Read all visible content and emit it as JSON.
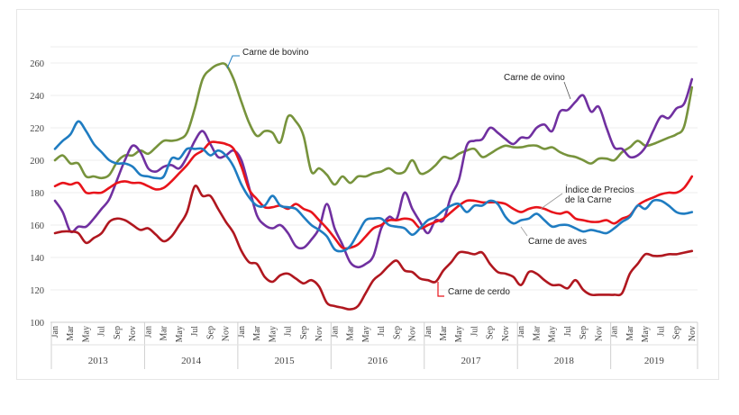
{
  "chart_data": {
    "type": "line",
    "title": "",
    "xlabel": "",
    "ylabel": "",
    "ylim": [
      100,
      260
    ],
    "yticks": [
      100,
      120,
      140,
      160,
      180,
      200,
      220,
      240,
      260
    ],
    "grid": true,
    "years": [
      "2013",
      "2014",
      "2015",
      "2016",
      "2017",
      "2018",
      "2019"
    ],
    "month_labels": [
      "Jan",
      "Mar",
      "May",
      "Jul",
      "Sep",
      "Nov"
    ],
    "x_start": "2013-01",
    "x_end": "2019-11",
    "series": [
      {
        "name": "Carne de bovino",
        "color": "#77933C",
        "values": [
          200,
          203,
          198,
          198,
          190,
          190,
          189,
          191,
          199,
          203,
          203,
          206,
          204,
          208,
          212,
          212,
          213,
          217,
          232,
          250,
          256,
          259,
          259,
          250,
          236,
          223,
          215,
          218,
          217,
          211,
          227,
          224,
          215,
          193,
          195,
          191,
          185,
          190,
          186,
          190,
          190,
          192,
          193,
          195,
          192,
          193,
          200,
          192,
          193,
          197,
          202,
          201,
          204,
          206,
          207,
          202,
          204,
          207,
          209,
          208,
          208,
          209,
          209,
          207,
          208,
          205,
          203,
          202,
          200,
          198,
          201,
          201,
          200,
          205,
          208,
          212,
          209,
          210,
          212,
          214,
          216,
          221,
          245
        ]
      },
      {
        "name": "Carne de ovino",
        "color": "#7030A0",
        "values": [
          175,
          168,
          156,
          159,
          159,
          164,
          170,
          176,
          188,
          200,
          209,
          205,
          195,
          193,
          196,
          197,
          195,
          202,
          212,
          218,
          210,
          202,
          203,
          206,
          200,
          183,
          166,
          160,
          158,
          160,
          155,
          147,
          146,
          151,
          158,
          173,
          158,
          148,
          137,
          134,
          136,
          141,
          158,
          165,
          164,
          180,
          170,
          162,
          155,
          163,
          163,
          178,
          188,
          209,
          212,
          213,
          220,
          217,
          213,
          210,
          214,
          214,
          220,
          222,
          218,
          230,
          231,
          236,
          240,
          230,
          233,
          220,
          208,
          207,
          202,
          203,
          208,
          218,
          227,
          226,
          232,
          235,
          250
        ]
      },
      {
        "name": "Índice de Precios de la Carne",
        "color": "#E8141B",
        "values": [
          184,
          186,
          185,
          186,
          180,
          180,
          180,
          183,
          186,
          187,
          186,
          186,
          184,
          182,
          183,
          187,
          192,
          197,
          203,
          206,
          211,
          211,
          210,
          207,
          196,
          182,
          176,
          171,
          171,
          172,
          170,
          173,
          170,
          168,
          163,
          158,
          152,
          146,
          146,
          148,
          153,
          158,
          160,
          163,
          163,
          164,
          163,
          158,
          160,
          162,
          164,
          168,
          172,
          175,
          175,
          174,
          174,
          174,
          173,
          170,
          168,
          170,
          171,
          170,
          168,
          167,
          168,
          164,
          163,
          162,
          162,
          163,
          161,
          164,
          166,
          172,
          175,
          177,
          179,
          180,
          180,
          183,
          190
        ]
      },
      {
        "name": "Carne de aves",
        "color": "#1F7CC1",
        "values": [
          207,
          212,
          216,
          224,
          218,
          210,
          205,
          200,
          198,
          198,
          196,
          191,
          190,
          189,
          190,
          201,
          201,
          207,
          207,
          207,
          203,
          206,
          203,
          196,
          185,
          177,
          172,
          172,
          178,
          172,
          171,
          170,
          165,
          160,
          157,
          153,
          145,
          144,
          147,
          155,
          163,
          164,
          164,
          160,
          159,
          158,
          154,
          158,
          163,
          165,
          169,
          172,
          173,
          168,
          172,
          172,
          175,
          173,
          165,
          161,
          163,
          164,
          167,
          163,
          159,
          160,
          160,
          158,
          156,
          157,
          156,
          155,
          158,
          162,
          165,
          172,
          170,
          175,
          175,
          172,
          168,
          167,
          168
        ]
      },
      {
        "name": "Carne de cerdo",
        "color": "#B0171F",
        "values": [
          155,
          156,
          156,
          155,
          149,
          152,
          155,
          162,
          164,
          163,
          160,
          157,
          158,
          154,
          150,
          153,
          160,
          168,
          184,
          178,
          178,
          170,
          162,
          155,
          144,
          137,
          136,
          128,
          125,
          129,
          130,
          127,
          124,
          126,
          122,
          112,
          110,
          109,
          108,
          110,
          118,
          126,
          130,
          135,
          138,
          132,
          131,
          127,
          126,
          125,
          132,
          137,
          143,
          143,
          142,
          143,
          136,
          131,
          130,
          128,
          123,
          131,
          130,
          126,
          123,
          123,
          121,
          126,
          120,
          117,
          117,
          117,
          117,
          118,
          130,
          136,
          142,
          141,
          141,
          142,
          142,
          143,
          144
        ]
      }
    ],
    "annotations": {
      "bovino": "Carne de bovino",
      "ovino": "Carne de ovino",
      "indice_line1": "Índice de Precios",
      "indice_line2": "de la Carne",
      "aves": "Carne de aves",
      "cerdo": "Carne de cerdo"
    },
    "annotation_leader_colors": {
      "bovino": "#1F7CC1",
      "ovino": "#7030A0",
      "indice": "#999999",
      "aves": "#999999",
      "cerdo": "#E8141B"
    }
  }
}
